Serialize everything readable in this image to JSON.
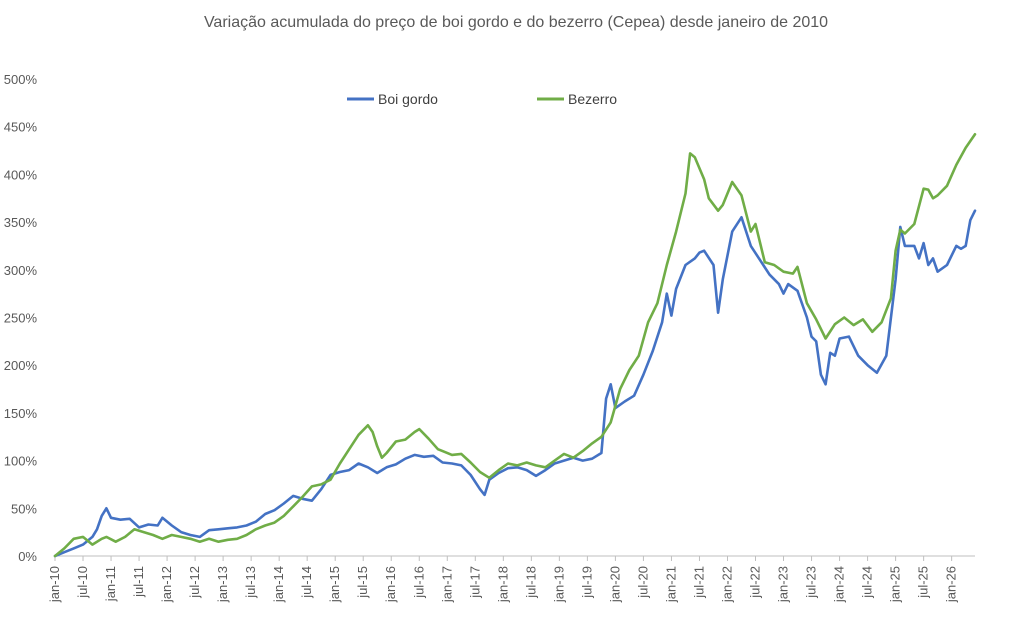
{
  "chart_data": {
    "type": "line",
    "title": "Variação acumulada do preço de boi gordo  e do bezerro (Cepea) desde janeiro de 2010",
    "xlabel": "",
    "ylabel": "",
    "ylim": [
      0,
      500
    ],
    "y_ticks": [
      "0%",
      "50%",
      "100%",
      "150%",
      "200%",
      "250%",
      "300%",
      "350%",
      "400%",
      "450%",
      "500%"
    ],
    "x_ticks": [
      "jan-10",
      "jul-10",
      "jan-11",
      "jul-11",
      "jan-12",
      "jul-12",
      "jan-13",
      "jul-13",
      "jan-14",
      "jul-14",
      "jan-15",
      "jul-15",
      "jan-16",
      "jul-16",
      "jan-17",
      "jul-17",
      "jan-18",
      "jul-18",
      "jan-19",
      "jul-19",
      "jan-20",
      "jul-20",
      "jan-21",
      "jul-21",
      "jan-22",
      "jul-22",
      "jan-23",
      "jul-23",
      "jan-24",
      "jul-24",
      "jan-25",
      "jul-25",
      "jan-26"
    ],
    "grid": false,
    "legend_position": "top-center",
    "series": [
      {
        "name": "Boi gordo",
        "color": "#4472C4",
        "points": [
          [
            "2010-01",
            0
          ],
          [
            "2010-03",
            4
          ],
          [
            "2010-05",
            8
          ],
          [
            "2010-07",
            12
          ],
          [
            "2010-09",
            20
          ],
          [
            "2010-10",
            28
          ],
          [
            "2010-11",
            42
          ],
          [
            "2010-12",
            50
          ],
          [
            "2011-01",
            40
          ],
          [
            "2011-03",
            38
          ],
          [
            "2011-05",
            39
          ],
          [
            "2011-07",
            30
          ],
          [
            "2011-09",
            33
          ],
          [
            "2011-11",
            32
          ],
          [
            "2011-12",
            40
          ],
          [
            "2012-02",
            32
          ],
          [
            "2012-04",
            25
          ],
          [
            "2012-06",
            22
          ],
          [
            "2012-08",
            20
          ],
          [
            "2012-10",
            27
          ],
          [
            "2012-12",
            28
          ],
          [
            "2013-02",
            29
          ],
          [
            "2013-04",
            30
          ],
          [
            "2013-06",
            32
          ],
          [
            "2013-08",
            36
          ],
          [
            "2013-10",
            44
          ],
          [
            "2013-12",
            48
          ],
          [
            "2014-02",
            55
          ],
          [
            "2014-04",
            63
          ],
          [
            "2014-06",
            60
          ],
          [
            "2014-08",
            58
          ],
          [
            "2014-10",
            70
          ],
          [
            "2014-12",
            85
          ],
          [
            "2015-02",
            88
          ],
          [
            "2015-04",
            90
          ],
          [
            "2015-06",
            97
          ],
          [
            "2015-08",
            93
          ],
          [
            "2015-10",
            87
          ],
          [
            "2015-12",
            93
          ],
          [
            "2016-02",
            96
          ],
          [
            "2016-04",
            102
          ],
          [
            "2016-06",
            106
          ],
          [
            "2016-08",
            104
          ],
          [
            "2016-10",
            105
          ],
          [
            "2016-12",
            98
          ],
          [
            "2017-02",
            97
          ],
          [
            "2017-04",
            95
          ],
          [
            "2017-06",
            85
          ],
          [
            "2017-08",
            70
          ],
          [
            "2017-09",
            64
          ],
          [
            "2017-10",
            80
          ],
          [
            "2017-12",
            87
          ],
          [
            "2018-02",
            92
          ],
          [
            "2018-04",
            93
          ],
          [
            "2018-06",
            90
          ],
          [
            "2018-08",
            84
          ],
          [
            "2018-10",
            90
          ],
          [
            "2018-12",
            97
          ],
          [
            "2019-02",
            100
          ],
          [
            "2019-04",
            103
          ],
          [
            "2019-06",
            100
          ],
          [
            "2019-08",
            102
          ],
          [
            "2019-10",
            108
          ],
          [
            "2019-11",
            165
          ],
          [
            "2019-12",
            180
          ],
          [
            "2020-01",
            155
          ],
          [
            "2020-03",
            162
          ],
          [
            "2020-05",
            168
          ],
          [
            "2020-07",
            190
          ],
          [
            "2020-09",
            215
          ],
          [
            "2020-11",
            245
          ],
          [
            "2020-12",
            275
          ],
          [
            "2021-01",
            252
          ],
          [
            "2021-02",
            280
          ],
          [
            "2021-04",
            305
          ],
          [
            "2021-06",
            312
          ],
          [
            "2021-07",
            318
          ],
          [
            "2021-08",
            320
          ],
          [
            "2021-10",
            305
          ],
          [
            "2021-11",
            255
          ],
          [
            "2021-12",
            290
          ],
          [
            "2022-02",
            340
          ],
          [
            "2022-04",
            355
          ],
          [
            "2022-06",
            325
          ],
          [
            "2022-08",
            310
          ],
          [
            "2022-10",
            295
          ],
          [
            "2022-12",
            285
          ],
          [
            "2023-01",
            275
          ],
          [
            "2023-02",
            285
          ],
          [
            "2023-04",
            278
          ],
          [
            "2023-06",
            250
          ],
          [
            "2023-07",
            230
          ],
          [
            "2023-08",
            225
          ],
          [
            "2023-09",
            190
          ],
          [
            "2023-10",
            180
          ],
          [
            "2023-11",
            213
          ],
          [
            "2023-12",
            210
          ],
          [
            "2024-01",
            228
          ],
          [
            "2024-03",
            230
          ],
          [
            "2024-05",
            210
          ],
          [
            "2024-07",
            200
          ],
          [
            "2024-09",
            192
          ],
          [
            "2024-11",
            210
          ],
          [
            "2025-01",
            290
          ],
          [
            "2025-02",
            345
          ],
          [
            "2025-03",
            325
          ],
          [
            "2025-05",
            325
          ],
          [
            "2025-06",
            312
          ],
          [
            "2025-07",
            328
          ],
          [
            "2025-08",
            305
          ],
          [
            "2025-09",
            312
          ],
          [
            "2025-10",
            298
          ],
          [
            "2025-12",
            305
          ],
          [
            "2026-02",
            325
          ],
          [
            "2026-03",
            322
          ],
          [
            "2026-04",
            325
          ],
          [
            "2026-05",
            352
          ],
          [
            "2026-06",
            362
          ]
        ]
      },
      {
        "name": "Bezerro",
        "color": "#70AD47",
        "points": [
          [
            "2010-01",
            0
          ],
          [
            "2010-03",
            8
          ],
          [
            "2010-05",
            18
          ],
          [
            "2010-07",
            20
          ],
          [
            "2010-09",
            12
          ],
          [
            "2010-11",
            18
          ],
          [
            "2010-12",
            20
          ],
          [
            "2011-02",
            15
          ],
          [
            "2011-04",
            20
          ],
          [
            "2011-06",
            28
          ],
          [
            "2011-08",
            25
          ],
          [
            "2011-10",
            22
          ],
          [
            "2011-12",
            18
          ],
          [
            "2012-02",
            22
          ],
          [
            "2012-04",
            20
          ],
          [
            "2012-06",
            18
          ],
          [
            "2012-08",
            15
          ],
          [
            "2012-10",
            18
          ],
          [
            "2012-12",
            15
          ],
          [
            "2013-02",
            17
          ],
          [
            "2013-04",
            18
          ],
          [
            "2013-06",
            22
          ],
          [
            "2013-08",
            28
          ],
          [
            "2013-10",
            32
          ],
          [
            "2013-12",
            35
          ],
          [
            "2014-02",
            42
          ],
          [
            "2014-04",
            52
          ],
          [
            "2014-06",
            62
          ],
          [
            "2014-08",
            73
          ],
          [
            "2014-10",
            75
          ],
          [
            "2014-12",
            80
          ],
          [
            "2015-02",
            97
          ],
          [
            "2015-04",
            112
          ],
          [
            "2015-06",
            127
          ],
          [
            "2015-08",
            137
          ],
          [
            "2015-09",
            130
          ],
          [
            "2015-10",
            115
          ],
          [
            "2015-11",
            103
          ],
          [
            "2015-12",
            108
          ],
          [
            "2016-02",
            120
          ],
          [
            "2016-04",
            122
          ],
          [
            "2016-06",
            130
          ],
          [
            "2016-07",
            133
          ],
          [
            "2016-09",
            123
          ],
          [
            "2016-11",
            112
          ],
          [
            "2016-12",
            110
          ],
          [
            "2017-02",
            106
          ],
          [
            "2017-04",
            107
          ],
          [
            "2017-06",
            98
          ],
          [
            "2017-08",
            88
          ],
          [
            "2017-10",
            82
          ],
          [
            "2017-12",
            90
          ],
          [
            "2018-02",
            97
          ],
          [
            "2018-04",
            95
          ],
          [
            "2018-06",
            98
          ],
          [
            "2018-08",
            95
          ],
          [
            "2018-10",
            93
          ],
          [
            "2018-12",
            100
          ],
          [
            "2019-02",
            107
          ],
          [
            "2019-04",
            103
          ],
          [
            "2019-06",
            110
          ],
          [
            "2019-08",
            118
          ],
          [
            "2019-10",
            125
          ],
          [
            "2019-12",
            140
          ],
          [
            "2020-02",
            175
          ],
          [
            "2020-04",
            195
          ],
          [
            "2020-06",
            210
          ],
          [
            "2020-08",
            245
          ],
          [
            "2020-10",
            265
          ],
          [
            "2020-12",
            305
          ],
          [
            "2021-02",
            340
          ],
          [
            "2021-04",
            380
          ],
          [
            "2021-05",
            422
          ],
          [
            "2021-06",
            418
          ],
          [
            "2021-08",
            395
          ],
          [
            "2021-09",
            375
          ],
          [
            "2021-11",
            362
          ],
          [
            "2021-12",
            368
          ],
          [
            "2022-02",
            392
          ],
          [
            "2022-04",
            378
          ],
          [
            "2022-06",
            340
          ],
          [
            "2022-07",
            348
          ],
          [
            "2022-09",
            308
          ],
          [
            "2022-11",
            305
          ],
          [
            "2023-01",
            298
          ],
          [
            "2023-03",
            296
          ],
          [
            "2023-04",
            303
          ],
          [
            "2023-06",
            265
          ],
          [
            "2023-08",
            248
          ],
          [
            "2023-10",
            228
          ],
          [
            "2023-12",
            243
          ],
          [
            "2024-02",
            250
          ],
          [
            "2024-04",
            242
          ],
          [
            "2024-06",
            248
          ],
          [
            "2024-08",
            235
          ],
          [
            "2024-10",
            245
          ],
          [
            "2024-12",
            270
          ],
          [
            "2025-01",
            320
          ],
          [
            "2025-02",
            342
          ],
          [
            "2025-03",
            338
          ],
          [
            "2025-05",
            348
          ],
          [
            "2025-07",
            385
          ],
          [
            "2025-08",
            384
          ],
          [
            "2025-09",
            375
          ],
          [
            "2025-10",
            378
          ],
          [
            "2025-12",
            388
          ],
          [
            "2026-02",
            410
          ],
          [
            "2026-04",
            428
          ],
          [
            "2026-06",
            442
          ]
        ]
      }
    ]
  }
}
